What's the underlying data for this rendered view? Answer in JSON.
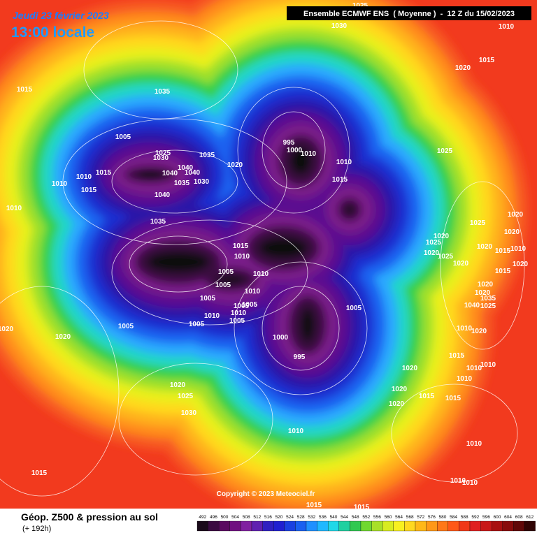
{
  "header": {
    "date": "Jeudi 23 février 2023",
    "time": "13:00 locale",
    "model": "Ensemble ECMWF ENS  ( Moyenne )  -  12 Z du 15/02/2023"
  },
  "isobar_labels": [
    1025,
    1030,
    1010,
    1015,
    1035,
    1015,
    1020,
    1005,
    995,
    1000,
    1010,
    1010,
    1015,
    1025,
    1030,
    1035,
    1025,
    1020,
    1010,
    1015,
    1040,
    1040,
    1040,
    1035,
    1030,
    1010,
    1015,
    1040,
    1010,
    1035,
    1025,
    1020,
    1020,
    1025,
    1020,
    1015,
    1010,
    1005,
    1010,
    1020,
    1015,
    1010,
    1020,
    1025,
    1020,
    1020,
    1015,
    1005,
    1010,
    1005,
    1005,
    1005,
    1010,
    1010,
    1005,
    1005,
    1020,
    1020,
    1035,
    1040,
    1025,
    1005,
    1005,
    1020,
    1020,
    1010,
    1020,
    1000,
    995,
    1015,
    1010,
    1010,
    1020,
    1010,
    1020,
    1025,
    1020,
    1015,
    1015,
    1020,
    1030,
    1010,
    1010,
    1015,
    1010,
    1010,
    1015,
    1015
  ],
  "footer": {
    "title": "Géop. Z500 & pression au sol",
    "lead": "(+ 192h)",
    "copyright": "Copyright © 2023 Meteociel.fr"
  },
  "colorbar": {
    "labels": [
      492,
      496,
      500,
      504,
      508,
      512,
      516,
      520,
      524,
      528,
      532,
      536,
      540,
      544,
      548,
      552,
      556,
      560,
      564,
      568,
      572,
      576,
      580,
      584,
      588,
      592,
      596,
      600,
      604,
      608,
      612
    ]
  }
}
